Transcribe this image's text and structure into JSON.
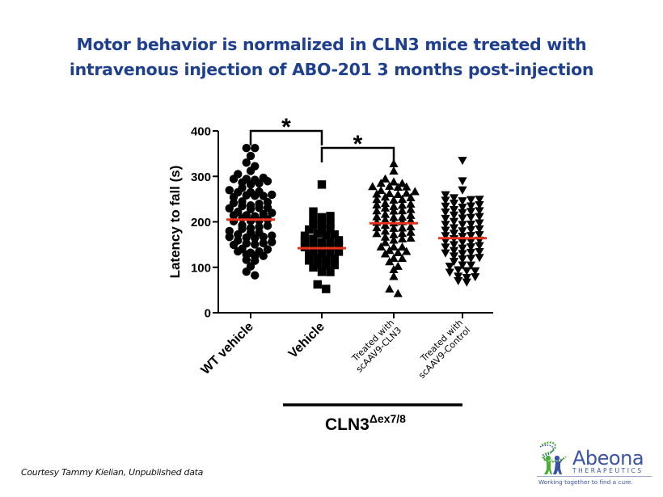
{
  "slide": {
    "title_line1": "Motor behavior is normalized in CLN3 mice treated with",
    "title_line2": "intravenous injection of ABO-201 3 months post-injection",
    "courtesy": "Courtesy Tammy Kielian, Unpublished data",
    "logo": {
      "name": "Abeona",
      "subtitle": "THERAPEUTICS",
      "tagline": "Working together to find a cure.",
      "colors": {
        "blue": "#3a55a4",
        "green": "#4caf32"
      }
    }
  },
  "chart_data": {
    "type": "scatter",
    "subtype": "dot-plot with mean lines",
    "title": "",
    "xlabel": "",
    "ylabel": "Latency to fall (s)",
    "ylim": [
      0,
      400
    ],
    "yticks": [
      0,
      100,
      200,
      300,
      400
    ],
    "grid": false,
    "mean_line_color": "#e8321e",
    "marker_color": "#000000",
    "group_bracket_label": "CLN3",
    "group_bracket_superscript": "Δex7/8",
    "significance": [
      {
        "from": 0,
        "to": 1,
        "label": "*"
      },
      {
        "from": 1,
        "to": 2,
        "label": "*"
      }
    ],
    "categories": [
      "WT vehicle",
      "Vehicle",
      "Treated with scAAV9-CLN3",
      "Treated with scAAV9-Control"
    ],
    "category_label_lines": [
      [
        "WT vehicle"
      ],
      [
        "Vehicle"
      ],
      [
        "Treated with",
        "scAAV9-CLN3"
      ],
      [
        "Treated with",
        "scAAV9-Control"
      ]
    ],
    "series": [
      {
        "name": "WT vehicle",
        "marker": "circle",
        "mean": 205,
        "values": [
          360,
          360,
          345,
          328,
          320,
          312,
          298,
          292,
          290,
          285,
          282,
          280,
          280,
          282,
          290,
          270,
          265,
          262,
          258,
          258,
          256,
          255,
          250,
          248,
          245,
          240,
          236,
          235,
          234,
          232,
          230,
          228,
          226,
          222,
          218,
          215,
          212,
          210,
          210,
          208,
          205,
          204,
          202,
          198,
          196,
          192,
          188,
          186,
          184,
          182,
          180,
          176,
          172,
          168,
          165,
          163,
          162,
          160,
          158,
          155,
          152,
          150,
          148,
          146,
          144,
          140,
          136,
          132,
          130,
          130,
          128,
          126,
          122,
          118,
          114,
          112,
          102,
          88,
          80
        ]
      },
      {
        "name": "Vehicle",
        "marker": "square",
        "mean": 142,
        "values": [
          282,
          218,
          210,
          208,
          200,
          196,
          192,
          188,
          182,
          180,
          176,
          172,
          168,
          165,
          160,
          158,
          155,
          152,
          150,
          148,
          145,
          142,
          140,
          138,
          135,
          132,
          130,
          128,
          125,
          120,
          118,
          115,
          112,
          108,
          105,
          102,
          98,
          95,
          90,
          85,
          60,
          50
        ]
      },
      {
        "name": "Treated with scAAV9-CLN3",
        "marker": "triangle-up",
        "mean": 197,
        "values": [
          328,
          312,
          290,
          288,
          280,
          278,
          276,
          274,
          270,
          266,
          262,
          260,
          258,
          256,
          255,
          252,
          250,
          248,
          245,
          244,
          240,
          236,
          234,
          232,
          230,
          228,
          226,
          224,
          220,
          218,
          215,
          212,
          210,
          206,
          205,
          202,
          200,
          198,
          196,
          194,
          190,
          188,
          186,
          182,
          180,
          178,
          175,
          172,
          170,
          168,
          165,
          162,
          160,
          158,
          155,
          150,
          145,
          140,
          138,
          135,
          130,
          128,
          125,
          120,
          115,
          110,
          100,
          95,
          80,
          50,
          40
        ]
      },
      {
        "name": "Treated with scAAV9-Control",
        "marker": "triangle-down",
        "mean": 164,
        "values": [
          335,
          290,
          270,
          250,
          248,
          246,
          244,
          240,
          238,
          236,
          232,
          230,
          228,
          225,
          222,
          220,
          218,
          215,
          212,
          210,
          208,
          205,
          202,
          198,
          196,
          194,
          190,
          188,
          185,
          182,
          180,
          178,
          175,
          172,
          170,
          168,
          165,
          162,
          160,
          158,
          155,
          152,
          150,
          148,
          145,
          142,
          140,
          138,
          135,
          132,
          130,
          128,
          125,
          122,
          120,
          118,
          115,
          112,
          108,
          105,
          100,
          95,
          92,
          90,
          85,
          82,
          78,
          75,
          72,
          68,
          65
        ]
      }
    ]
  }
}
